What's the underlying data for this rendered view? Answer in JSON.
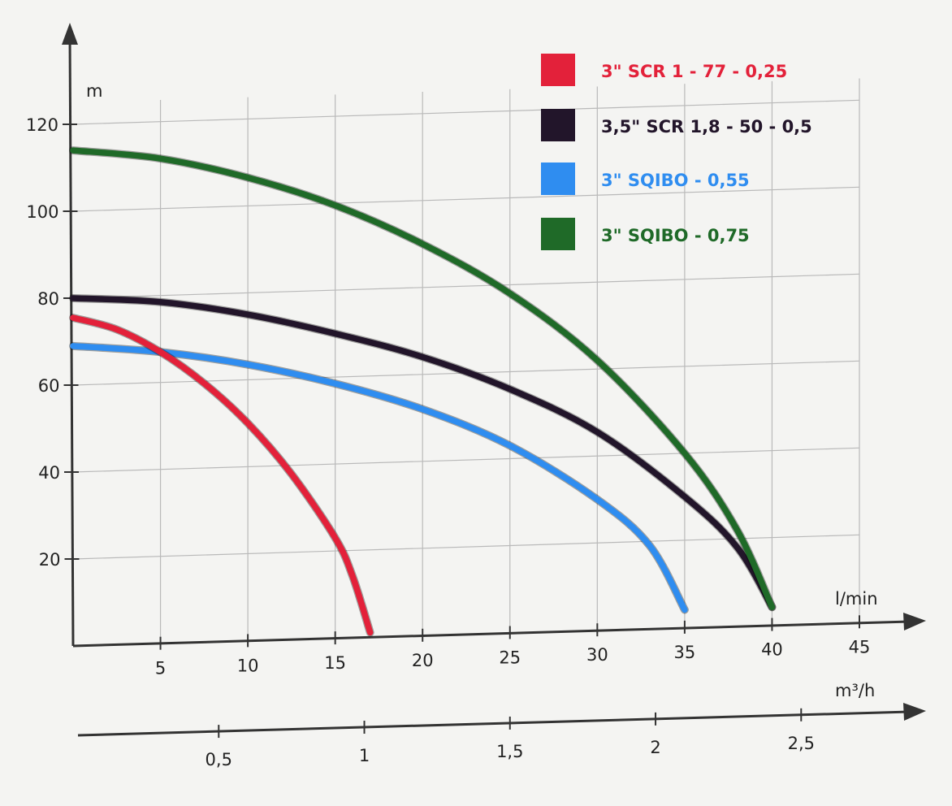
{
  "chart_data": {
    "type": "line",
    "ylabel": "m",
    "xlabel": "l/min",
    "xlabel2": "m³/h",
    "xlim": [
      0,
      45
    ],
    "ylim": [
      0,
      120
    ],
    "xlim2": [
      0,
      2.7
    ],
    "x_ticks": [
      "5",
      "10",
      "15",
      "20",
      "25",
      "30",
      "35",
      "40",
      "45"
    ],
    "y_ticks": [
      "20",
      "40",
      "60",
      "80",
      "100",
      "120"
    ],
    "x2_ticks": [
      "0,5",
      "1",
      "1,5",
      "2",
      "2,5"
    ],
    "grid": true,
    "legend_position": "top-right",
    "series": [
      {
        "name": "3\" SCR 1 - 77 - 0,25",
        "color": "#e3213a",
        "x": [
          0,
          2.5,
          5,
          7.5,
          10,
          12.5,
          15,
          16,
          17
        ],
        "y": [
          75.5,
          72.5,
          67,
          59.5,
          50,
          38,
          23,
          14,
          1
        ]
      },
      {
        "name": "3,5\" SCR 1,8 - 50 - 0,5",
        "color": "#22152a",
        "x": [
          0,
          5,
          10,
          15,
          20,
          25,
          30,
          35,
          38,
          40
        ],
        "y": [
          80,
          78.5,
          75,
          70,
          64,
          56,
          45.5,
          30,
          18,
          4
        ]
      },
      {
        "name": "3\" SQIBO - 0,55",
        "color": "#2f8df0",
        "x": [
          0,
          5,
          10,
          15,
          20,
          25,
          30,
          33,
          35
        ],
        "y": [
          69,
          67,
          63.5,
          58.5,
          52,
          43,
          30,
          19,
          4
        ]
      },
      {
        "name": "3\" SQIBO - 0,75",
        "color": "#1f6a28",
        "x": [
          0,
          5,
          10,
          15,
          20,
          25,
          30,
          35,
          38,
          40
        ],
        "y": [
          114,
          111.5,
          106.5,
          99.5,
          90,
          78,
          62,
          40,
          22,
          4
        ]
      }
    ]
  }
}
